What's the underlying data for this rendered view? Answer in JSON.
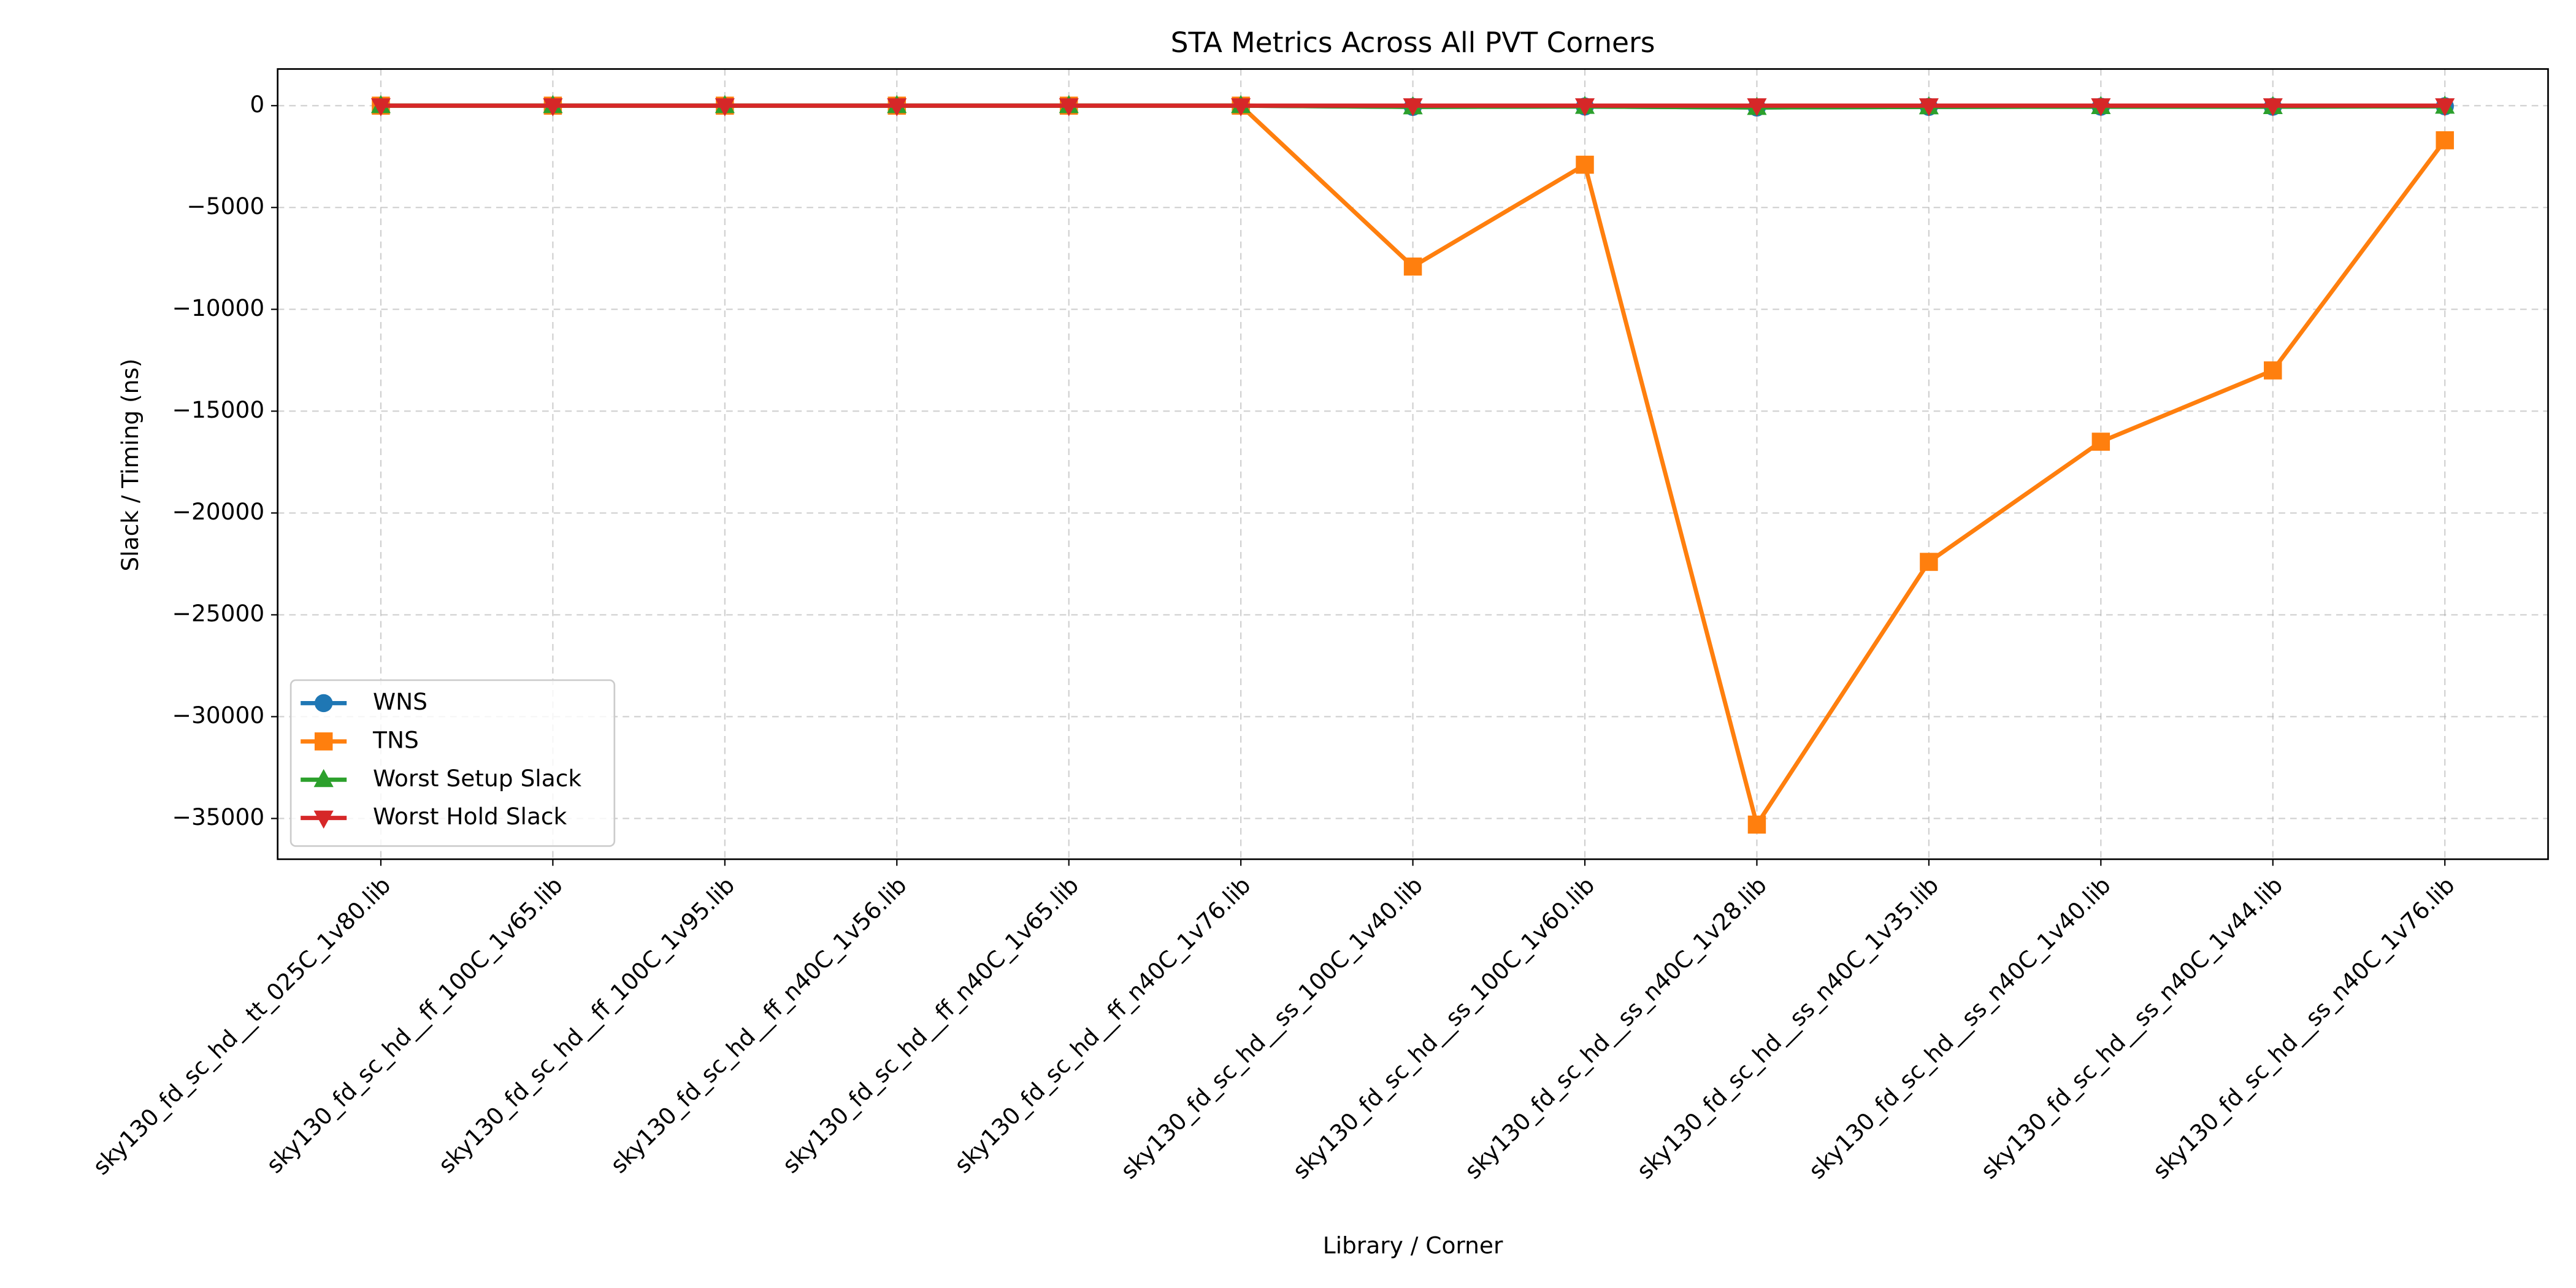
{
  "chart_data": {
    "type": "line",
    "title": "STA Metrics Across All PVT Corners",
    "x_label": "Library / Corner",
    "y_label": "Slack / Timing (ns)",
    "categories": [
      "sky130_fd_sc_hd__tt_025C_1v80.lib",
      "sky130_fd_sc_hd__ff_100C_1v65.lib",
      "sky130_fd_sc_hd__ff_100C_1v95.lib",
      "sky130_fd_sc_hd__ff_n40C_1v56.lib",
      "sky130_fd_sc_hd__ff_n40C_1v65.lib",
      "sky130_fd_sc_hd__ff_n40C_1v76.lib",
      "sky130_fd_sc_hd__ss_100C_1v40.lib",
      "sky130_fd_sc_hd__ss_100C_1v60.lib",
      "sky130_fd_sc_hd__ss_n40C_1v28.lib",
      "sky130_fd_sc_hd__ss_n40C_1v35.lib",
      "sky130_fd_sc_hd__ss_n40C_1v40.lib",
      "sky130_fd_sc_hd__ss_n40C_1v44.lib",
      "sky130_fd_sc_hd__ss_n40C_1v76.lib"
    ],
    "series": [
      {
        "name": "WNS",
        "color": "#1f77b4",
        "marker": "circle",
        "values": [
          0,
          0,
          0,
          0,
          0,
          0,
          -60,
          -40,
          -90,
          -60,
          -50,
          -50,
          -30
        ]
      },
      {
        "name": "TNS",
        "color": "#ff7f0e",
        "marker": "square",
        "values": [
          0,
          0,
          0,
          0,
          0,
          0,
          -7900,
          -2900,
          -35300,
          -22400,
          -16500,
          -13000,
          -1700
        ]
      },
      {
        "name": "Worst Setup Slack",
        "color": "#2ca02c",
        "marker": "triangle-up",
        "values": [
          0,
          0,
          0,
          0,
          0,
          0,
          -60,
          -40,
          -90,
          -60,
          -50,
          -50,
          -30
        ]
      },
      {
        "name": "Worst Hold Slack",
        "color": "#d62728",
        "marker": "triangle-down",
        "values": [
          0,
          0,
          0,
          0,
          0,
          0,
          0,
          0,
          0,
          0,
          0,
          0,
          0
        ]
      }
    ],
    "ylim": [
      -37000,
      1800
    ],
    "yticks": [
      {
        "value": -35000,
        "label": "−35000"
      },
      {
        "value": -30000,
        "label": "−30000"
      },
      {
        "value": -25000,
        "label": "−25000"
      },
      {
        "value": -20000,
        "label": "−20000"
      },
      {
        "value": -15000,
        "label": "−15000"
      },
      {
        "value": -10000,
        "label": "−10000"
      },
      {
        "value": -5000,
        "label": "−5000"
      },
      0
    ],
    "grid": true,
    "legend": "lower left"
  }
}
